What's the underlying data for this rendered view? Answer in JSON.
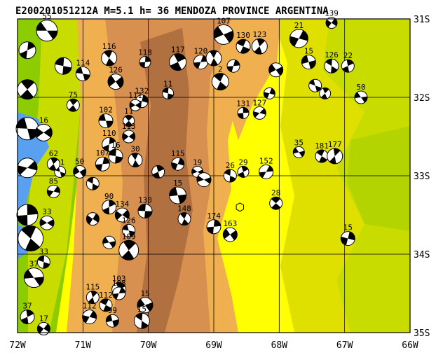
{
  "title": "E200201051212A M=5.1 h= 36 MENDOZA PROVINCE ARGENTINA",
  "lon_ticks": [
    "72W",
    "71W",
    "70W",
    "69W",
    "68W",
    "67W",
    "66W"
  ],
  "lat_ticks": [
    "31S",
    "32S",
    "33S",
    "34S",
    "35S"
  ],
  "extent": {
    "lon_min": -72,
    "lon_max": -66,
    "lat_min": -35,
    "lat_max": -31
  },
  "colors": {
    "low": "#ffff00",
    "lowland": "#e8e400",
    "green1": "#c8dc00",
    "green2": "#8ccc00",
    "orange": "#f0b050",
    "brown": "#d89050",
    "darkbrown": "#a86a3c",
    "water": "#5aa0f0",
    "grid": "#000000"
  },
  "epicenter": {
    "lon": -68.6,
    "lat": -33.4
  },
  "mechanisms": [
    {
      "lon": -71.55,
      "lat": -31.15,
      "depth": "55",
      "r": 15
    },
    {
      "lon": -70.6,
      "lat": -31.5,
      "depth": "116",
      "r": 11
    },
    {
      "lon": -70.05,
      "lat": -31.55,
      "depth": "118",
      "r": 8
    },
    {
      "lon": -70.5,
      "lat": -31.8,
      "depth": "126",
      "r": 11
    },
    {
      "lon": -71.0,
      "lat": -31.7,
      "depth": "114",
      "r": 10
    },
    {
      "lon": -71.15,
      "lat": -32.1,
      "depth": "75",
      "r": 9
    },
    {
      "lon": -70.1,
      "lat": -32.05,
      "depth": "132",
      "r": 9
    },
    {
      "lon": -70.2,
      "lat": -32.1,
      "depth": "111",
      "r": 8
    },
    {
      "lon": -69.7,
      "lat": -31.95,
      "depth": "11",
      "r": 8
    },
    {
      "lon": -69.55,
      "lat": -31.55,
      "depth": "117",
      "r": 12
    },
    {
      "lon": -69.2,
      "lat": -31.55,
      "depth": "120",
      "r": 10
    },
    {
      "lon": -68.85,
      "lat": -31.2,
      "depth": "107",
      "r": 14
    },
    {
      "lon": -68.55,
      "lat": -31.35,
      "depth": "130",
      "r": 10
    },
    {
      "lon": -68.3,
      "lat": -31.35,
      "depth": "123",
      "r": 11
    },
    {
      "lon": -67.7,
      "lat": -31.25,
      "depth": "21",
      "r": 13
    },
    {
      "lon": -67.55,
      "lat": -31.55,
      "depth": "15",
      "r": 10
    },
    {
      "lon": -67.2,
      "lat": -31.6,
      "depth": "126",
      "r": 10
    },
    {
      "lon": -66.95,
      "lat": -31.6,
      "depth": "22",
      "r": 9
    },
    {
      "lon": -67.2,
      "lat": -31.05,
      "depth": "139",
      "r": 8
    },
    {
      "lon": -66.75,
      "lat": -32.0,
      "depth": "50",
      "r": 9
    },
    {
      "lon": -68.9,
      "lat": -31.8,
      "depth": "2",
      "r": 12
    },
    {
      "lon": -68.55,
      "lat": -32.2,
      "depth": "131",
      "r": 8
    },
    {
      "lon": -68.3,
      "lat": -32.2,
      "depth": "127",
      "r": 9
    },
    {
      "lon": -70.65,
      "lat": -32.3,
      "depth": "102",
      "r": 10
    },
    {
      "lon": -70.3,
      "lat": -32.3,
      "depth": "11",
      "r": 8
    },
    {
      "lon": -70.6,
      "lat": -32.6,
      "depth": "110",
      "r": 10
    },
    {
      "lon": -70.3,
      "lat": -32.5,
      "depth": "113",
      "r": 9
    },
    {
      "lon": -70.5,
      "lat": -32.75,
      "depth": "16",
      "r": 10
    },
    {
      "lon": -70.2,
      "lat": -32.8,
      "depth": "30",
      "r": 10
    },
    {
      "lon": -70.7,
      "lat": -32.85,
      "depth": "107",
      "r": 10
    },
    {
      "lon": -71.05,
      "lat": -32.95,
      "depth": "50",
      "r": 9
    },
    {
      "lon": -71.35,
      "lat": -32.95,
      "depth": "91",
      "r": 8
    },
    {
      "lon": -71.45,
      "lat": -32.85,
      "depth": "62",
      "r": 9
    },
    {
      "lon": -69.55,
      "lat": -32.85,
      "depth": "115",
      "r": 9
    },
    {
      "lon": -69.25,
      "lat": -32.95,
      "depth": "19",
      "r": 8
    },
    {
      "lon": -68.75,
      "lat": -33.0,
      "depth": "26",
      "r": 9
    },
    {
      "lon": -68.55,
      "lat": -32.95,
      "depth": "29",
      "r": 8
    },
    {
      "lon": -68.2,
      "lat": -32.95,
      "depth": "152",
      "r": 10
    },
    {
      "lon": -67.7,
      "lat": -32.7,
      "depth": "35",
      "r": 8
    },
    {
      "lon": -67.35,
      "lat": -32.75,
      "depth": "181",
      "r": 9
    },
    {
      "lon": -67.15,
      "lat": -32.75,
      "depth": "177",
      "r": 11
    },
    {
      "lon": -71.45,
      "lat": -33.2,
      "depth": "85",
      "r": 9
    },
    {
      "lon": -69.55,
      "lat": -33.25,
      "depth": "15",
      "r": 12
    },
    {
      "lon": -68.05,
      "lat": -33.35,
      "depth": "28",
      "r": 9
    },
    {
      "lon": -70.6,
      "lat": -33.4,
      "depth": "90",
      "r": 10
    },
    {
      "lon": -70.4,
      "lat": -33.5,
      "depth": "134",
      "r": 10
    },
    {
      "lon": -70.05,
      "lat": -33.45,
      "depth": "130",
      "r": 10
    },
    {
      "lon": -69.45,
      "lat": -33.55,
      "depth": "148",
      "r": 9
    },
    {
      "lon": -69.0,
      "lat": -33.65,
      "depth": "174",
      "r": 10
    },
    {
      "lon": -68.75,
      "lat": -33.75,
      "depth": "163",
      "r": 10
    },
    {
      "lon": -70.3,
      "lat": -33.7,
      "depth": "126",
      "r": 9
    },
    {
      "lon": -70.3,
      "lat": -33.95,
      "depth": "109",
      "r": 14
    },
    {
      "lon": -66.95,
      "lat": -33.8,
      "depth": "15",
      "r": 10
    },
    {
      "lon": -71.55,
      "lat": -33.6,
      "depth": "33",
      "r": 10
    },
    {
      "lon": -71.6,
      "lat": -34.1,
      "depth": "33",
      "r": 9
    },
    {
      "lon": -70.45,
      "lat": -34.45,
      "depth": "103",
      "r": 10
    },
    {
      "lon": -70.45,
      "lat": -34.5,
      "depth": "108",
      "r": 9
    },
    {
      "lon": -70.05,
      "lat": -34.65,
      "depth": "15",
      "r": 11
    },
    {
      "lon": -70.65,
      "lat": -34.65,
      "depth": "112",
      "r": 9
    },
    {
      "lon": -70.85,
      "lat": -34.55,
      "depth": "115",
      "r": 9
    },
    {
      "lon": -70.9,
      "lat": -34.8,
      "depth": "112",
      "r": 10
    },
    {
      "lon": -70.55,
      "lat": -34.85,
      "depth": "99",
      "r": 9
    },
    {
      "lon": -70.1,
      "lat": -34.85,
      "depth": "15",
      "r": 11
    },
    {
      "lon": -71.85,
      "lat": -34.8,
      "depth": "37",
      "r": 10
    },
    {
      "lon": -71.6,
      "lat": -34.95,
      "depth": "17",
      "r": 9
    },
    {
      "lon": -71.75,
      "lat": -34.3,
      "depth": "37",
      "r": 14
    },
    {
      "lon": -71.8,
      "lat": -33.8,
      "depth": "",
      "r": 18
    },
    {
      "lon": -71.85,
      "lat": -33.5,
      "depth": "",
      "r": 15
    },
    {
      "lon": -71.85,
      "lat": -32.9,
      "depth": "",
      "r": 14
    },
    {
      "lon": -71.85,
      "lat": -32.4,
      "depth": "",
      "r": 16
    },
    {
      "lon": -71.85,
      "lat": -31.9,
      "depth": "",
      "r": 14
    },
    {
      "lon": -71.85,
      "lat": -31.4,
      "depth": "",
      "r": 12
    },
    {
      "lon": -71.6,
      "lat": -32.45,
      "depth": "16",
      "r": 12
    },
    {
      "lon": -71.3,
      "lat": -31.6,
      "depth": "",
      "r": 12
    },
    {
      "lon": -69.0,
      "lat": -31.5,
      "depth": "",
      "r": 11
    },
    {
      "lon": -68.7,
      "lat": -31.6,
      "depth": "",
      "r": 9
    },
    {
      "lon": -68.05,
      "lat": -31.65,
      "depth": "",
      "r": 10
    },
    {
      "lon": -67.45,
      "lat": -31.85,
      "depth": "",
      "r": 9
    },
    {
      "lon": -67.3,
      "lat": -31.95,
      "depth": "",
      "r": 8
    },
    {
      "lon": -68.15,
      "lat": -31.95,
      "depth": "",
      "r": 8
    },
    {
      "lon": -69.15,
      "lat": -33.05,
      "depth": "",
      "r": 10
    },
    {
      "lon": -70.85,
      "lat": -33.1,
      "depth": "",
      "r": 9
    },
    {
      "lon": -69.85,
      "lat": -32.95,
      "depth": "",
      "r": 9
    },
    {
      "lon": -70.85,
      "lat": -33.55,
      "depth": "",
      "r": 9
    },
    {
      "lon": -70.6,
      "lat": -33.85,
      "depth": "",
      "r": 9
    }
  ]
}
